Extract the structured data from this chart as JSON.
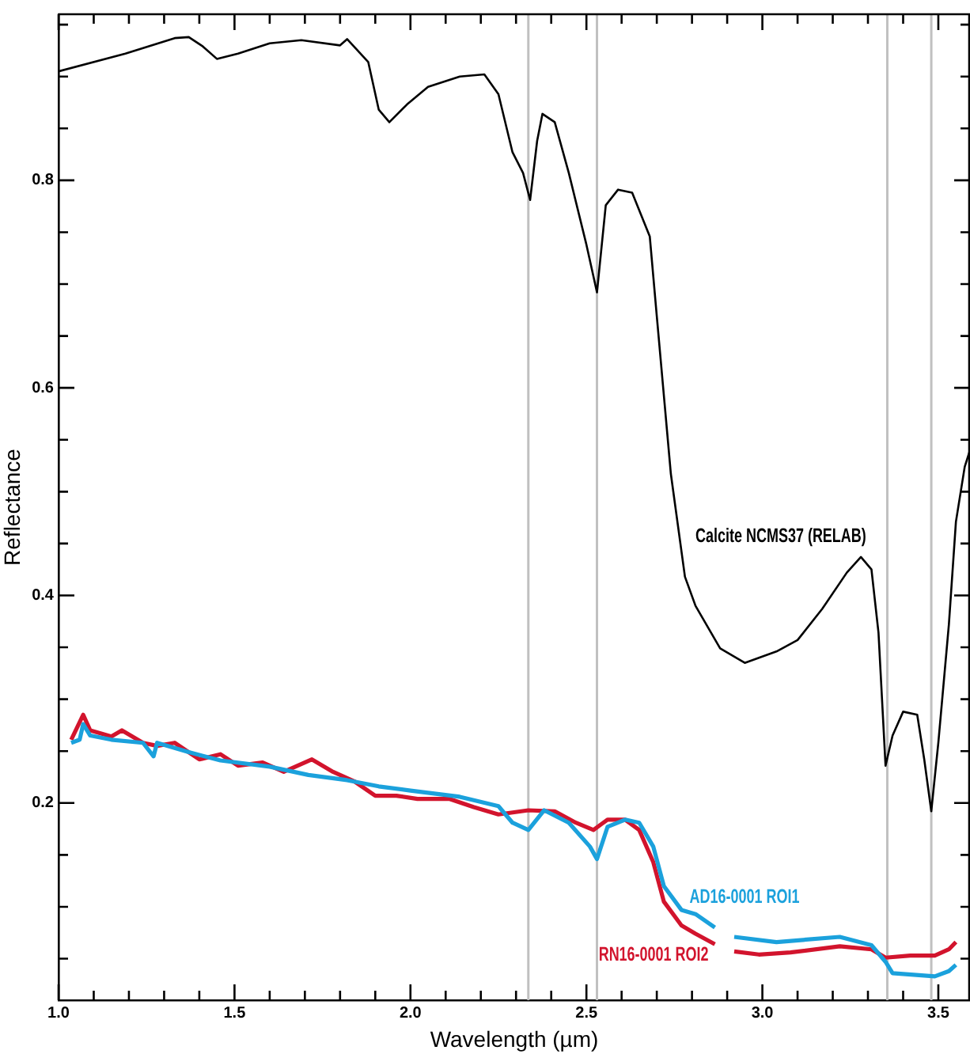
{
  "chart_data": {
    "type": "line",
    "xlabel": "Wavelength (µm)",
    "ylabel": "Reflectance",
    "xlim": [
      1.0,
      3.59
    ],
    "ylim": [
      0.01,
      0.96
    ],
    "xticks": [
      {
        "value": 1.0,
        "label": "1.0"
      },
      {
        "value": 1.1,
        "label": null
      },
      {
        "value": 1.2,
        "label": null
      },
      {
        "value": 1.3,
        "label": null
      },
      {
        "value": 1.4,
        "label": null
      },
      {
        "value": 1.5,
        "label": "1.5"
      },
      {
        "value": 1.6,
        "label": null
      },
      {
        "value": 1.7,
        "label": null
      },
      {
        "value": 1.8,
        "label": null
      },
      {
        "value": 1.9,
        "label": null
      },
      {
        "value": 2.0,
        "label": "2.0"
      },
      {
        "value": 2.1,
        "label": null
      },
      {
        "value": 2.2,
        "label": null
      },
      {
        "value": 2.3,
        "label": null
      },
      {
        "value": 2.4,
        "label": null
      },
      {
        "value": 2.5,
        "label": "2.5"
      },
      {
        "value": 2.6,
        "label": null
      },
      {
        "value": 2.7,
        "label": null
      },
      {
        "value": 2.8,
        "label": null
      },
      {
        "value": 2.9,
        "label": null
      },
      {
        "value": 3.0,
        "label": "3.0"
      },
      {
        "value": 3.1,
        "label": null
      },
      {
        "value": 3.2,
        "label": null
      },
      {
        "value": 3.3,
        "label": null
      },
      {
        "value": 3.4,
        "label": null
      },
      {
        "value": 3.5,
        "label": "3.5"
      }
    ],
    "yticks": [
      {
        "value": 0.05,
        "label": null
      },
      {
        "value": 0.1,
        "label": null
      },
      {
        "value": 0.15,
        "label": null
      },
      0.2,
      {
        "value": 0.25,
        "label": null
      },
      {
        "value": 0.3,
        "label": null
      },
      {
        "value": 0.35,
        "label": null
      },
      0.4,
      {
        "value": 0.45,
        "label": null
      },
      {
        "value": 0.5,
        "label": null
      },
      {
        "value": 0.55,
        "label": null
      },
      0.6,
      {
        "value": 0.65,
        "label": null
      },
      {
        "value": 0.7,
        "label": null
      },
      {
        "value": 0.75,
        "label": null
      },
      0.8,
      {
        "value": 0.85,
        "label": null
      },
      {
        "value": 0.9,
        "label": null
      },
      {
        "value": 0.95,
        "label": null
      }
    ],
    "grid": false,
    "legend": false,
    "marker": "none",
    "line_style": "solid",
    "ref_lines": [
      {
        "axis": "x",
        "value": 2.335,
        "color": "#c0c0c0"
      },
      {
        "axis": "x",
        "value": 2.53,
        "color": "#c0c0c0"
      },
      {
        "axis": "x",
        "value": 3.355,
        "color": "#c0c0c0"
      },
      {
        "axis": "x",
        "value": 3.48,
        "color": "#c0c0c0"
      }
    ],
    "series": [
      {
        "name": "Calcite NCMS37 (RELAB)",
        "color": "#000000",
        "x": [
          1.0,
          1.19,
          1.33,
          1.37,
          1.41,
          1.45,
          1.51,
          1.6,
          1.69,
          1.8,
          1.82,
          1.88,
          1.91,
          1.94,
          1.99,
          2.05,
          2.14,
          2.21,
          2.25,
          2.29,
          2.32,
          2.34,
          2.36,
          2.375,
          2.41,
          2.45,
          2.5,
          2.53,
          2.555,
          2.59,
          2.63,
          2.68,
          2.7,
          2.74,
          2.78,
          2.81,
          2.88,
          2.95,
          3.04,
          3.1,
          3.17,
          3.24,
          3.28,
          3.31,
          3.33,
          3.35,
          3.37,
          3.4,
          3.44,
          3.46,
          3.48,
          3.5,
          3.53,
          3.55,
          3.575,
          3.59
        ],
        "values": [
          0.905,
          0.922,
          0.937,
          0.938,
          0.929,
          0.917,
          0.922,
          0.932,
          0.935,
          0.93,
          0.936,
          0.914,
          0.868,
          0.856,
          0.873,
          0.89,
          0.9,
          0.902,
          0.883,
          0.827,
          0.807,
          0.781,
          0.838,
          0.864,
          0.856,
          0.807,
          0.738,
          0.692,
          0.776,
          0.791,
          0.788,
          0.746,
          0.669,
          0.517,
          0.418,
          0.39,
          0.349,
          0.335,
          0.346,
          0.357,
          0.387,
          0.422,
          0.437,
          0.425,
          0.364,
          0.236,
          0.265,
          0.288,
          0.285,
          0.242,
          0.192,
          0.258,
          0.372,
          0.471,
          0.524,
          0.54
        ]
      },
      {
        "name": "AD16-0001 ROI1",
        "color": "#1ba1dc",
        "x": [
          1.036,
          1.06,
          1.07,
          1.09,
          1.15,
          1.24,
          1.27,
          1.28,
          1.37,
          1.46,
          1.6,
          1.71,
          1.82,
          1.91,
          2.0,
          2.14,
          2.25,
          2.29,
          2.335,
          2.38,
          2.45,
          2.51,
          2.53,
          2.56,
          2.61,
          2.65,
          2.69,
          2.72,
          2.77,
          2.81,
          2.865,
          2.89,
          2.92,
          3.04,
          3.22,
          3.31,
          3.35,
          3.37,
          3.49,
          3.53,
          3.55
        ],
        "values": [
          0.258,
          0.261,
          0.276,
          0.265,
          0.261,
          0.258,
          0.245,
          0.258,
          0.249,
          0.241,
          0.235,
          0.227,
          0.222,
          0.216,
          0.212,
          0.206,
          0.197,
          0.181,
          0.174,
          0.193,
          0.181,
          0.158,
          0.146,
          0.177,
          0.184,
          0.181,
          0.158,
          0.12,
          0.097,
          0.093,
          0.08,
          null,
          0.071,
          0.066,
          0.071,
          0.063,
          0.047,
          0.036,
          0.033,
          0.038,
          0.044
        ]
      },
      {
        "name": "RN16-0001 ROI2",
        "color": "#d2142d",
        "x": [
          1.036,
          1.07,
          1.09,
          1.15,
          1.18,
          1.24,
          1.28,
          1.33,
          1.4,
          1.46,
          1.51,
          1.58,
          1.64,
          1.72,
          1.78,
          1.84,
          1.9,
          1.96,
          2.02,
          2.11,
          2.18,
          2.25,
          2.335,
          2.41,
          2.47,
          2.52,
          2.56,
          2.61,
          2.65,
          2.69,
          2.72,
          2.77,
          2.81,
          2.865,
          2.89,
          2.92,
          2.99,
          3.08,
          3.22,
          3.31,
          3.35,
          3.42,
          3.49,
          3.53,
          3.55
        ],
        "values": [
          0.261,
          0.285,
          0.27,
          0.264,
          0.27,
          0.258,
          0.255,
          0.258,
          0.242,
          0.247,
          0.236,
          0.239,
          0.23,
          0.242,
          0.23,
          0.221,
          0.207,
          0.207,
          0.204,
          0.204,
          0.196,
          0.189,
          0.193,
          0.192,
          0.181,
          0.174,
          0.184,
          0.184,
          0.174,
          0.143,
          0.105,
          0.082,
          0.074,
          0.064,
          null,
          0.057,
          0.054,
          0.056,
          0.062,
          0.059,
          0.051,
          0.053,
          0.053,
          0.059,
          0.066
        ]
      }
    ]
  }
}
